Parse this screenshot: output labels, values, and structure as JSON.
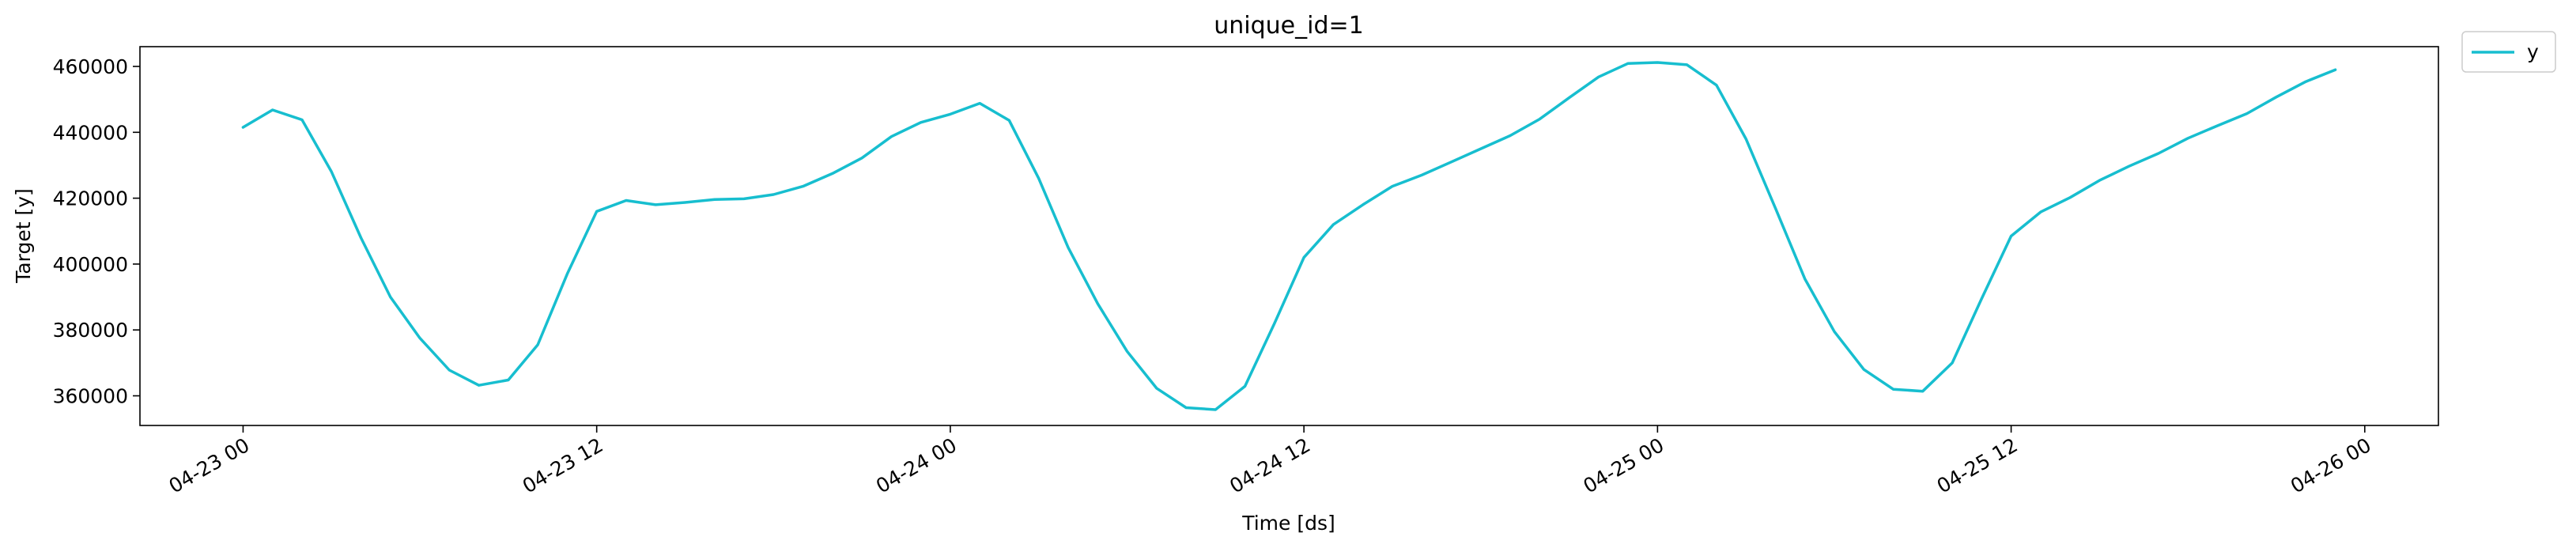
{
  "chart_data": {
    "type": "line",
    "title": "unique_id=1",
    "xlabel": "Time [ds]",
    "ylabel": "Target [y]",
    "x_tick_labels": [
      "04-23 00",
      "04-23 12",
      "04-24 00",
      "04-24 12",
      "04-25 00",
      "04-25 12",
      "04-26 00"
    ],
    "x_tick_hours": [
      0,
      12,
      24,
      36,
      48,
      60,
      72
    ],
    "xlim_hours": [
      -3.5,
      74.5
    ],
    "x_start_date": "2016-04-23T00:00",
    "y_ticks": [
      360000,
      380000,
      400000,
      420000,
      440000,
      460000
    ],
    "y_tick_labels": [
      "360000",
      "380000",
      "400000",
      "420000",
      "440000",
      "460000"
    ],
    "ylim": [
      351000,
      466000
    ],
    "grid": false,
    "legend_position": "outside-top-right",
    "series": [
      {
        "name": "y",
        "color": "#17becf",
        "x_hours": [
          0,
          1,
          2,
          3,
          4,
          5,
          6,
          7,
          8,
          9,
          10,
          11,
          12,
          13,
          14,
          15,
          16,
          17,
          18,
          19,
          20,
          21,
          22,
          23,
          24,
          25,
          26,
          27,
          28,
          29,
          30,
          31,
          32,
          33,
          34,
          35,
          36,
          37,
          38,
          39,
          40,
          41,
          42,
          43,
          44,
          45,
          46,
          47,
          48,
          49,
          50,
          51,
          52,
          53,
          54,
          55,
          56,
          57,
          58,
          59,
          60,
          61,
          62,
          63,
          64,
          65,
          66,
          67,
          68,
          69,
          70,
          71
        ],
        "values": [
          441500,
          446800,
          443800,
          428000,
          408000,
          390000,
          377500,
          367800,
          363200,
          364800,
          375500,
          397000,
          416000,
          419300,
          418000,
          418700,
          419600,
          419800,
          421100,
          423600,
          427500,
          432200,
          438700,
          443000,
          445500,
          448800,
          443600,
          426000,
          405000,
          388000,
          373500,
          362300,
          356400,
          355800,
          362900,
          382000,
          402000,
          412000,
          418000,
          423600,
          427000,
          431000,
          435000,
          439000,
          444000,
          450500,
          456800,
          460900,
          461200,
          460500,
          454300,
          438000,
          417000,
          395500,
          379500,
          368000,
          362000,
          361400,
          370000,
          389500,
          408500,
          415800,
          420200,
          425400,
          429700,
          433600,
          438200,
          442000,
          445700,
          450700,
          455400,
          459000
        ]
      }
    ]
  }
}
